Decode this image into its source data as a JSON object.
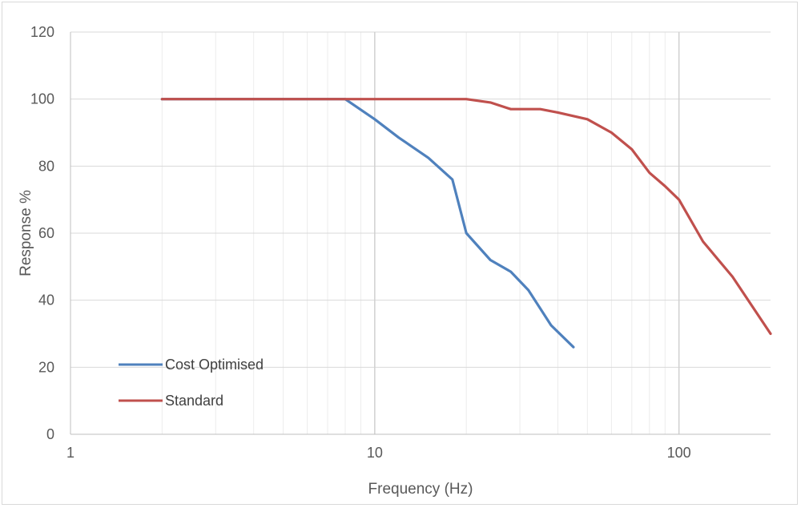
{
  "chart_data": {
    "type": "line",
    "title": "",
    "xlabel": "Frequency (Hz)",
    "ylabel": "Response %",
    "x_scale": "log",
    "xlim": [
      1,
      200
    ],
    "ylim": [
      0,
      120
    ],
    "x_ticks": [
      1,
      10,
      100
    ],
    "x_tick_labels": [
      "1",
      "10",
      "100"
    ],
    "y_ticks": [
      0,
      20,
      40,
      60,
      80,
      100,
      120
    ],
    "y_tick_labels": [
      "0",
      "20",
      "40",
      "60",
      "80",
      "100",
      "120"
    ],
    "grid": true,
    "legend_position": "bottom-left",
    "series": [
      {
        "name": "Cost Optimised",
        "color": "#4f81bd",
        "x": [
          2,
          8,
          10,
          12,
          15,
          18,
          20,
          24,
          28,
          32,
          38,
          45
        ],
        "y": [
          100,
          100,
          94,
          88.5,
          82.5,
          76,
          60,
          52,
          48.5,
          43,
          32.5,
          26
        ]
      },
      {
        "name": "Standard",
        "color": "#c0504d",
        "x": [
          2,
          8,
          20,
          24,
          28,
          35,
          40,
          50,
          60,
          70,
          80,
          90,
          100,
          120,
          150,
          200
        ],
        "y": [
          100,
          100,
          100,
          99,
          97,
          97,
          96,
          94,
          90,
          85,
          78,
          74,
          70,
          57.5,
          47,
          30
        ]
      }
    ]
  }
}
